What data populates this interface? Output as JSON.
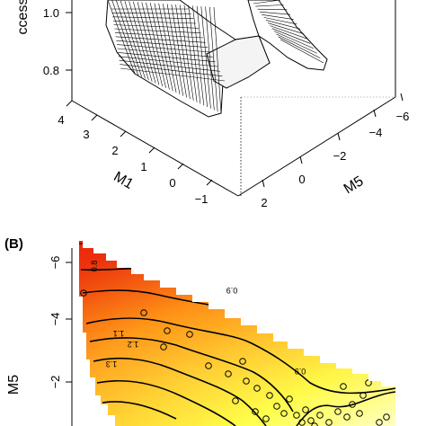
{
  "chart_data": [
    {
      "type": "surface",
      "panel_label": "",
      "zlabel": "ccess",
      "xlabel": "M1",
      "ylabel": "M5",
      "z_ticks": [
        "1.0",
        "0.8"
      ],
      "x_ticks": [
        "4",
        "3",
        "2",
        "1",
        "0",
        "−1"
      ],
      "y_ticks": [
        "2",
        "0",
        "−2",
        "−4",
        "−6"
      ],
      "mesh_color": "#000000",
      "surface_fill": "#ffffff"
    },
    {
      "type": "heatmap",
      "panel_label": "(B)",
      "ylabel": "M5",
      "y_ticks": [
        "−6",
        "−4",
        "−2"
      ],
      "contour_labels": [
        "0.8",
        "0.9",
        "1.1",
        "1.2",
        "1.3",
        "0.9"
      ],
      "colors": {
        "high": "#e8200c",
        "mid": "#ff9a1a",
        "low": "#ffff4a",
        "lowest": "#ffffd2"
      }
    }
  ]
}
